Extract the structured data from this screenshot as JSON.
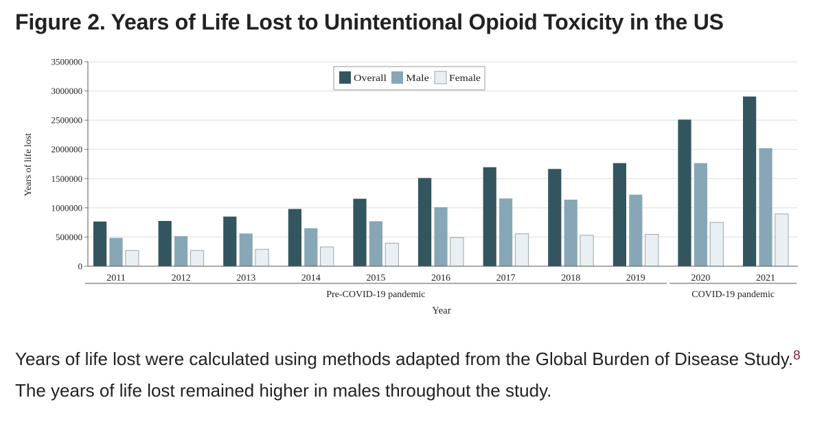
{
  "figure": {
    "title": "Figure 2.  Years of Life Lost to Unintentional Opioid Toxicity in the US"
  },
  "caption": {
    "text_before": "Years of life lost were calculated using methods adapted from the Global Burden of Disease Study.",
    "footnote_ref": "8",
    "text_after": " The years of life lost remained higher in males throughout the study."
  },
  "colors": {
    "overall": "#33555f",
    "male": "#88a7b6",
    "female": "#e9eff2",
    "gridline": "#dcdcdc",
    "footnote_ref": "#8b1a4a"
  },
  "chart_data": {
    "type": "bar",
    "title": "",
    "xlabel": "Year",
    "ylabel": "Years of life lost",
    "ylim": [
      0,
      3500000
    ],
    "yticks": [
      0,
      500000,
      1000000,
      1500000,
      2000000,
      2500000,
      3000000,
      3500000
    ],
    "ytick_labels": [
      "0",
      "500000",
      "1000000",
      "1500000",
      "2000000",
      "2500000",
      "3000000",
      "3500000"
    ],
    "grid": true,
    "legend_position": "top-center",
    "categories": [
      "2011",
      "2012",
      "2013",
      "2014",
      "2015",
      "2016",
      "2017",
      "2018",
      "2019",
      "2020",
      "2021"
    ],
    "series": [
      {
        "name": "Overall",
        "values": [
          765000,
          775000,
          850000,
          980000,
          1155000,
          1510000,
          1695000,
          1665000,
          1765000,
          2510000,
          2905000
        ]
      },
      {
        "name": "Male",
        "values": [
          485000,
          515000,
          560000,
          650000,
          770000,
          1010000,
          1160000,
          1140000,
          1225000,
          1765000,
          2020000
        ]
      },
      {
        "name": "Female",
        "values": [
          270000,
          270000,
          290000,
          330000,
          395000,
          490000,
          555000,
          530000,
          545000,
          750000,
          895000
        ]
      }
    ],
    "groups": [
      {
        "label": "Pre-COVID-19 pandemic",
        "categories": [
          "2011",
          "2012",
          "2013",
          "2014",
          "2015",
          "2016",
          "2017",
          "2018",
          "2019"
        ]
      },
      {
        "label": "COVID-19 pandemic",
        "categories": [
          "2020",
          "2021"
        ]
      }
    ]
  }
}
